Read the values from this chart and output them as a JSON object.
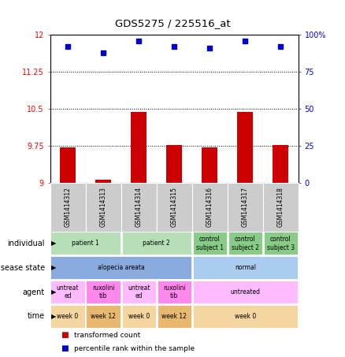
{
  "title": "GDS5275 / 225516_at",
  "samples": [
    "GSM1414312",
    "GSM1414313",
    "GSM1414314",
    "GSM1414315",
    "GSM1414316",
    "GSM1414317",
    "GSM1414318"
  ],
  "bar_values": [
    9.72,
    9.07,
    10.45,
    9.78,
    9.72,
    10.45,
    9.78
  ],
  "dot_values": [
    92,
    88,
    96,
    92,
    91,
    96,
    92
  ],
  "ymin": 9.0,
  "ymax": 12.0,
  "yticks_left": [
    9,
    9.75,
    10.5,
    11.25,
    12
  ],
  "yticks_right": [
    0,
    25,
    50,
    75,
    100
  ],
  "bar_color": "#cc0000",
  "dot_color": "#0000cc",
  "grid_lines": [
    9.75,
    10.5,
    11.25
  ],
  "metadata_rows": [
    {
      "label": "individual",
      "cells": [
        {
          "text": "patient 1",
          "span": 2,
          "color": "#b8e0b8"
        },
        {
          "text": "patient 2",
          "span": 2,
          "color": "#b8e0b8"
        },
        {
          "text": "control\nsubject 1",
          "span": 1,
          "color": "#88cc88"
        },
        {
          "text": "control\nsubject 2",
          "span": 1,
          "color": "#88cc88"
        },
        {
          "text": "control\nsubject 3",
          "span": 1,
          "color": "#88cc88"
        }
      ]
    },
    {
      "label": "disease state",
      "cells": [
        {
          "text": "alopecia areata",
          "span": 4,
          "color": "#88aadd"
        },
        {
          "text": "normal",
          "span": 3,
          "color": "#aaccee"
        }
      ]
    },
    {
      "label": "agent",
      "cells": [
        {
          "text": "untreat\ned",
          "span": 1,
          "color": "#ffbbff"
        },
        {
          "text": "ruxolini\ntib",
          "span": 1,
          "color": "#ff88ee"
        },
        {
          "text": "untreat\ned",
          "span": 1,
          "color": "#ffbbff"
        },
        {
          "text": "ruxolini\ntib",
          "span": 1,
          "color": "#ff88ee"
        },
        {
          "text": "untreated",
          "span": 3,
          "color": "#ffbbff"
        }
      ]
    },
    {
      "label": "time",
      "cells": [
        {
          "text": "week 0",
          "span": 1,
          "color": "#f5d5a0"
        },
        {
          "text": "week 12",
          "span": 1,
          "color": "#e8b870"
        },
        {
          "text": "week 0",
          "span": 1,
          "color": "#f5d5a0"
        },
        {
          "text": "week 12",
          "span": 1,
          "color": "#e8b870"
        },
        {
          "text": "week 0",
          "span": 3,
          "color": "#f5d5a0"
        }
      ]
    }
  ],
  "legend_items": [
    {
      "color": "#cc0000",
      "label": "transformed count"
    },
    {
      "color": "#0000cc",
      "label": "percentile rank within the sample"
    }
  ],
  "sample_box_color": "#cccccc",
  "fig_width": 4.38,
  "fig_height": 4.53,
  "dpi": 100
}
